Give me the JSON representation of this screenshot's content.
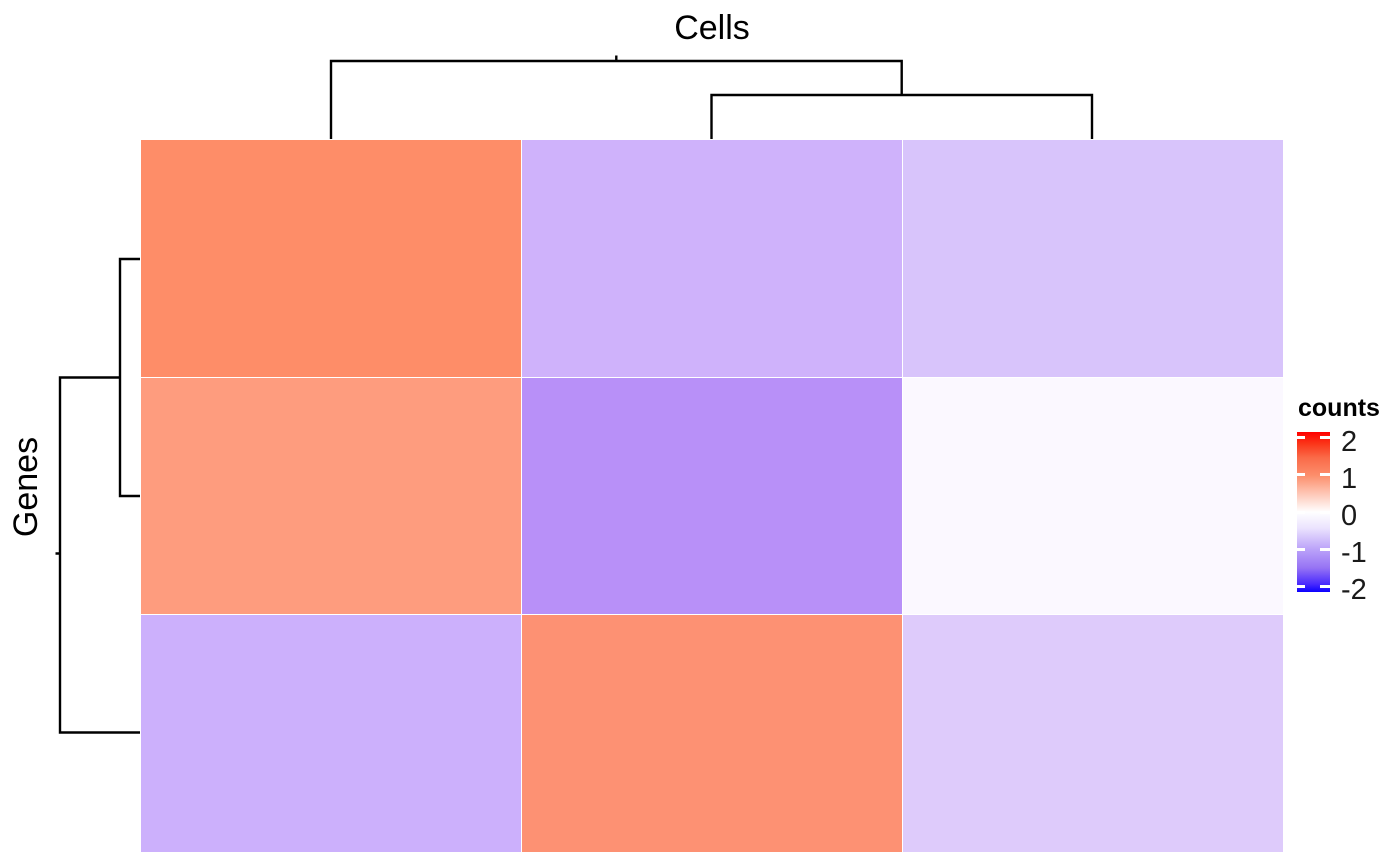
{
  "chart_data": {
    "type": "heatmap",
    "title": "Cells",
    "row_axis_label": "Genes",
    "n_rows": 3,
    "n_cols": 3,
    "grid": false,
    "cells": [
      {
        "row": 0,
        "col": 0,
        "color": "#FE8D68",
        "value_est": 0.9
      },
      {
        "row": 0,
        "col": 1,
        "color": "#CFB2FB",
        "value_est": -0.8
      },
      {
        "row": 0,
        "col": 2,
        "color": "#D8C4FB",
        "value_est": -0.7
      },
      {
        "row": 1,
        "col": 0,
        "color": "#FE9C7E",
        "value_est": 0.75
      },
      {
        "row": 1,
        "col": 1,
        "color": "#B890F8",
        "value_est": -1.15
      },
      {
        "row": 1,
        "col": 2,
        "color": "#FBF8FF",
        "value_est": -0.05
      },
      {
        "row": 2,
        "col": 0,
        "color": "#CCB0FC",
        "value_est": -0.8
      },
      {
        "row": 2,
        "col": 1,
        "color": "#FD9173",
        "value_est": 0.85
      },
      {
        "row": 2,
        "col": 2,
        "color": "#DECBFB",
        "value_est": -0.6
      }
    ],
    "col_dendrogram": "columns 2 and 3 cluster first; column 1 joins at the root",
    "row_dendrogram": "rows 1 and 2 cluster first; row 3 joins at the root",
    "legend": {
      "title": "counts",
      "ticks": [
        2,
        1,
        0,
        -1,
        -2
      ],
      "bar_top_value": 2.15,
      "bar_bottom_value": -2.15,
      "legend_position": "right",
      "colormap": {
        "high": "#FF0000",
        "mid": "#FFFFFF",
        "low": "#0000FF"
      }
    }
  }
}
